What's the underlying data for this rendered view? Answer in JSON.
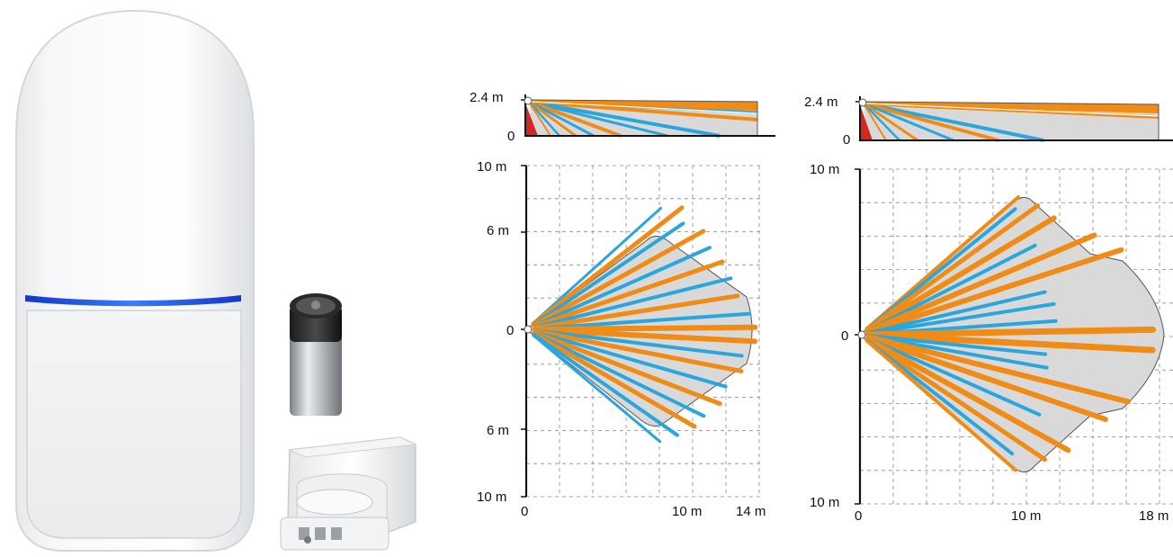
{
  "colors": {
    "orange": "#f08b16",
    "blue": "#2ba6dd",
    "area": "#d9d9d9",
    "outline": "#555555",
    "axis": "#111111",
    "led": "#1a44e6",
    "red": "#d3281f"
  },
  "product": {
    "items": [
      "motion-detector",
      "battery",
      "mounting-bracket"
    ]
  },
  "diagrams": [
    {
      "id": "standard-lens",
      "side_view": {
        "height_label": "2.4 m",
        "zero_label": "0",
        "max_range_m": 14
      },
      "top_view": {
        "y_top_label": "10 m",
        "y_mid_top_label": "6 m",
        "y_zero_label": "0",
        "y_mid_bottom_label": "6 m",
        "y_bottom_label": "10 m",
        "x_zero_label": "0",
        "x_mid_label": "10 m",
        "x_max_label": "14 m",
        "max_range_m": 14,
        "half_width_m": 6
      }
    },
    {
      "id": "long-range-lens",
      "side_view": {
        "height_label": "2.4 m",
        "zero_label": "0",
        "max_range_m": 18
      },
      "top_view": {
        "y_top_label": "10 m",
        "y_zero_label": "0",
        "y_bottom_label": "10 m",
        "x_zero_label": "0",
        "x_mid_label": "10 m",
        "x_max_label": "18 m",
        "max_range_m": 18,
        "half_width_m": 8
      }
    }
  ]
}
